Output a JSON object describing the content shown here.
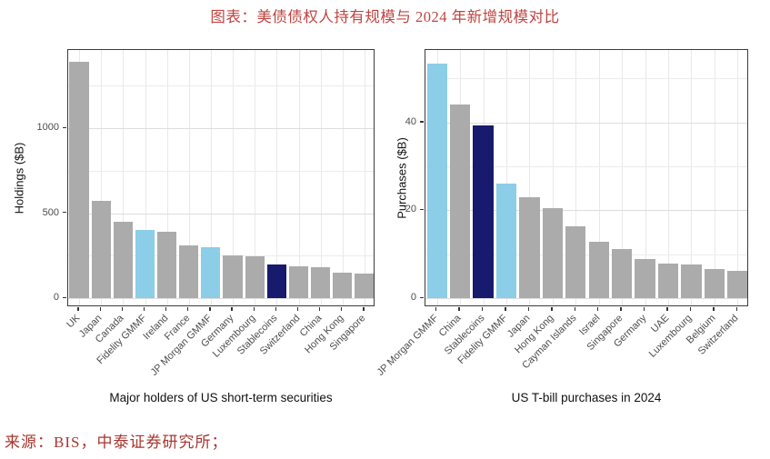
{
  "title": "图表：美债债权人持有规模与 2024 年新增规模对比",
  "source": "来源：BIS，中泰证券研究所；",
  "colors": {
    "bar_gray": "#ABABAB",
    "bar_light_blue": "#8CCDE8",
    "bar_navy": "#181A6D",
    "title_red": "#BE4440",
    "source_red": "#A8362F",
    "panel_border": "#3C3C3C",
    "grid_major": "#DEDEDE",
    "grid_minor": "#ECECEC",
    "axis_text": "#4D4D4D",
    "axis_title": "#111111"
  },
  "chart_data": [
    {
      "type": "bar",
      "title": "",
      "xlabel": "Major holders of US short-term securities",
      "ylabel": "Holdings ($B)",
      "ylim": [
        0,
        1460
      ],
      "yticks": [
        0,
        500,
        1000
      ],
      "yticks_minor": [
        250,
        750,
        1250
      ],
      "grid": true,
      "legend_position": "none",
      "categories": [
        "UK",
        "Japan",
        "Canada",
        "Fidelity GMMF",
        "Ireland",
        "France",
        "JP Morgan GMMF",
        "Germany",
        "Luxembourg",
        "Stablecoins",
        "Switzerland",
        "China",
        "Hong Kong",
        "Singapore"
      ],
      "values": [
        1390,
        575,
        450,
        400,
        393,
        312,
        298,
        250,
        246,
        200,
        188,
        181,
        150,
        145
      ],
      "bar_color_keys": [
        "gray",
        "gray",
        "gray",
        "light_blue",
        "gray",
        "gray",
        "light_blue",
        "gray",
        "gray",
        "navy",
        "gray",
        "gray",
        "gray",
        "gray"
      ]
    },
    {
      "type": "bar",
      "title": "",
      "xlabel": "US T-bill purchases in 2024",
      "ylabel": "Purchases ($B)",
      "ylim": [
        0,
        56.5
      ],
      "yticks": [
        0,
        20,
        40
      ],
      "yticks_minor": [
        10,
        30,
        50
      ],
      "grid": true,
      "legend_position": "none",
      "categories": [
        "JP Morgan GMMF",
        "China",
        "Stablecoins",
        "Fidelity GMMF",
        "Japan",
        "Hong Kong",
        "Cayman Islands",
        "Israel",
        "Singapore",
        "Germany",
        "UAE",
        "Luxembourg",
        "Belgium",
        "Switzerland"
      ],
      "values": [
        53.5,
        44,
        39.4,
        26,
        23,
        20.5,
        16.4,
        12.9,
        11.1,
        8.9,
        7.8,
        7.6,
        6.7,
        6.3
      ],
      "bar_color_keys": [
        "light_blue",
        "gray",
        "navy",
        "light_blue",
        "gray",
        "gray",
        "gray",
        "gray",
        "gray",
        "gray",
        "gray",
        "gray",
        "gray",
        "gray"
      ]
    }
  ]
}
